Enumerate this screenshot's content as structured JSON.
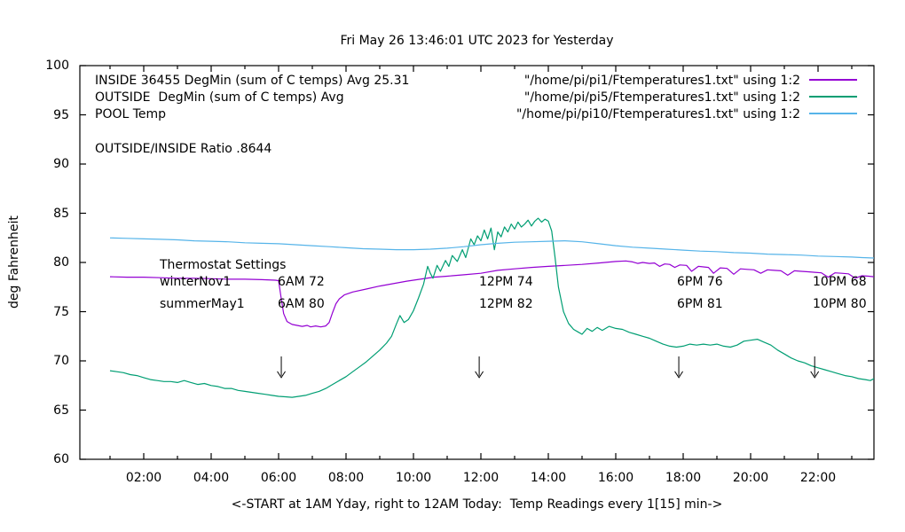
{
  "title": "Fri May 26 13:46:01 UTC 2023 for Yesterday",
  "y_axis": {
    "label": "deg Fahrenheit"
  },
  "x_axis": {
    "label": "<-START at 1AM Yday, right to 12AM Today:  Temp Readings every 1[15] min->"
  },
  "legend_left": {
    "lines": [
      "INSIDE 36455 DegMin (sum of C temps) Avg 25.31",
      "OUTSIDE  DegMin (sum of C temps) Avg",
      "POOL Temp"
    ],
    "ratio_line": "OUTSIDE/INSIDE Ratio .8644"
  },
  "legend_right": {
    "entries": [
      {
        "label": "\"/home/pi/pi1/Ftemperatures1.txt\" using 1:2",
        "color": "#9400d3"
      },
      {
        "label": "\"/home/pi/pi5/Ftemperatures1.txt\" using 1:2",
        "color": "#009e73"
      },
      {
        "label": "\"/home/pi/pi10/Ftemperatures1.txt\" using 1:2",
        "color": "#56b4e9"
      }
    ]
  },
  "thermostat": {
    "heading": "Thermostat Settings",
    "rows": [
      {
        "label": "winterNov1",
        "settings": [
          "6AM 72",
          "12PM 74",
          "6PM 76",
          "10PM 68"
        ]
      },
      {
        "label": "summerMay1",
        "settings": [
          "6AM 80",
          "12PM 82",
          "6PM 81",
          "10PM 80"
        ]
      }
    ]
  },
  "chart_data": {
    "type": "line",
    "title": "Fri May 26 13:46:01 UTC 2023 for Yesterday",
    "xlabel": "<-START at 1AM Yday, right to 12AM Today:  Temp Readings every 1[15] min->",
    "ylabel": "deg Fahrenheit",
    "x_unit": "hour_of_day",
    "xlim": [
      0.1,
      23.66
    ],
    "ylim": [
      60,
      100
    ],
    "grid": false,
    "y_ticks": [
      60,
      65,
      70,
      75,
      80,
      85,
      90,
      95,
      100
    ],
    "x_ticks": [
      {
        "t": 2,
        "label": "02:00"
      },
      {
        "t": 4,
        "label": "04:00"
      },
      {
        "t": 6,
        "label": "06:00"
      },
      {
        "t": 8,
        "label": "08:00"
      },
      {
        "t": 10,
        "label": "10:00"
      },
      {
        "t": 12,
        "label": "12:00"
      },
      {
        "t": 14,
        "label": "14:00"
      },
      {
        "t": 16,
        "label": "16:00"
      },
      {
        "t": 18,
        "label": "18:00"
      },
      {
        "t": 20,
        "label": "20:00"
      },
      {
        "t": 22,
        "label": "22:00"
      }
    ],
    "minor_x_ticks_every_hour": true,
    "series": [
      {
        "name": "INSIDE",
        "color": "#9400d3",
        "points": [
          [
            1.0,
            78.55
          ],
          [
            1.5,
            78.5
          ],
          [
            2.0,
            78.5
          ],
          [
            2.5,
            78.45
          ],
          [
            3.0,
            78.4
          ],
          [
            3.5,
            78.4
          ],
          [
            4.0,
            78.35
          ],
          [
            4.5,
            78.3
          ],
          [
            5.0,
            78.3
          ],
          [
            5.5,
            78.25
          ],
          [
            5.9,
            78.2
          ],
          [
            6.0,
            78.15
          ],
          [
            6.07,
            76.5
          ],
          [
            6.15,
            74.8
          ],
          [
            6.25,
            74.0
          ],
          [
            6.4,
            73.7
          ],
          [
            6.55,
            73.6
          ],
          [
            6.7,
            73.5
          ],
          [
            6.85,
            73.6
          ],
          [
            6.95,
            73.45
          ],
          [
            7.1,
            73.55
          ],
          [
            7.25,
            73.45
          ],
          [
            7.4,
            73.55
          ],
          [
            7.5,
            73.9
          ],
          [
            7.6,
            74.9
          ],
          [
            7.7,
            75.8
          ],
          [
            7.8,
            76.3
          ],
          [
            7.95,
            76.7
          ],
          [
            8.2,
            77.0
          ],
          [
            8.6,
            77.3
          ],
          [
            9.0,
            77.6
          ],
          [
            9.4,
            77.85
          ],
          [
            9.8,
            78.1
          ],
          [
            10.2,
            78.3
          ],
          [
            10.6,
            78.5
          ],
          [
            11.0,
            78.6
          ],
          [
            11.5,
            78.75
          ],
          [
            12.0,
            78.9
          ],
          [
            12.5,
            79.2
          ],
          [
            13.0,
            79.35
          ],
          [
            13.5,
            79.5
          ],
          [
            14.0,
            79.6
          ],
          [
            14.5,
            79.7
          ],
          [
            15.0,
            79.8
          ],
          [
            15.5,
            79.95
          ],
          [
            16.0,
            80.1
          ],
          [
            16.3,
            80.15
          ],
          [
            16.5,
            80.05
          ],
          [
            16.65,
            79.9
          ],
          [
            16.8,
            80.0
          ],
          [
            17.0,
            79.9
          ],
          [
            17.15,
            79.95
          ],
          [
            17.3,
            79.6
          ],
          [
            17.45,
            79.85
          ],
          [
            17.6,
            79.8
          ],
          [
            17.75,
            79.5
          ],
          [
            17.9,
            79.75
          ],
          [
            18.1,
            79.7
          ],
          [
            18.25,
            79.1
          ],
          [
            18.45,
            79.6
          ],
          [
            18.6,
            79.55
          ],
          [
            18.75,
            79.5
          ],
          [
            18.9,
            78.9
          ],
          [
            19.1,
            79.45
          ],
          [
            19.3,
            79.4
          ],
          [
            19.5,
            78.8
          ],
          [
            19.7,
            79.35
          ],
          [
            19.9,
            79.3
          ],
          [
            20.1,
            79.25
          ],
          [
            20.3,
            78.9
          ],
          [
            20.5,
            79.25
          ],
          [
            20.7,
            79.2
          ],
          [
            20.9,
            79.15
          ],
          [
            21.1,
            78.7
          ],
          [
            21.3,
            79.15
          ],
          [
            21.5,
            79.1
          ],
          [
            21.7,
            79.05
          ],
          [
            21.9,
            79.0
          ],
          [
            22.1,
            78.95
          ],
          [
            22.3,
            78.5
          ],
          [
            22.5,
            78.95
          ],
          [
            22.7,
            78.9
          ],
          [
            22.9,
            78.85
          ],
          [
            23.1,
            78.4
          ],
          [
            23.3,
            78.65
          ],
          [
            23.5,
            78.6
          ],
          [
            23.66,
            78.55
          ]
        ]
      },
      {
        "name": "OUTSIDE",
        "color": "#009e73",
        "points": [
          [
            1.0,
            69.0
          ],
          [
            1.2,
            68.9
          ],
          [
            1.4,
            68.8
          ],
          [
            1.6,
            68.6
          ],
          [
            1.8,
            68.5
          ],
          [
            2.0,
            68.3
          ],
          [
            2.2,
            68.1
          ],
          [
            2.4,
            68.0
          ],
          [
            2.6,
            67.9
          ],
          [
            2.8,
            67.9
          ],
          [
            3.0,
            67.8
          ],
          [
            3.2,
            68.0
          ],
          [
            3.4,
            67.8
          ],
          [
            3.6,
            67.6
          ],
          [
            3.8,
            67.7
          ],
          [
            4.0,
            67.5
          ],
          [
            4.2,
            67.4
          ],
          [
            4.4,
            67.2
          ],
          [
            4.6,
            67.2
          ],
          [
            4.8,
            67.0
          ],
          [
            5.0,
            66.9
          ],
          [
            5.2,
            66.8
          ],
          [
            5.4,
            66.7
          ],
          [
            5.6,
            66.6
          ],
          [
            5.8,
            66.5
          ],
          [
            6.0,
            66.4
          ],
          [
            6.2,
            66.35
          ],
          [
            6.4,
            66.3
          ],
          [
            6.6,
            66.4
          ],
          [
            6.8,
            66.5
          ],
          [
            7.0,
            66.7
          ],
          [
            7.2,
            66.9
          ],
          [
            7.4,
            67.2
          ],
          [
            7.6,
            67.6
          ],
          [
            7.8,
            68.0
          ],
          [
            8.0,
            68.4
          ],
          [
            8.2,
            68.9
          ],
          [
            8.4,
            69.4
          ],
          [
            8.6,
            69.9
          ],
          [
            8.8,
            70.5
          ],
          [
            9.0,
            71.1
          ],
          [
            9.2,
            71.8
          ],
          [
            9.35,
            72.5
          ],
          [
            9.5,
            73.8
          ],
          [
            9.6,
            74.6
          ],
          [
            9.72,
            73.9
          ],
          [
            9.85,
            74.2
          ],
          [
            10.0,
            75.1
          ],
          [
            10.15,
            76.4
          ],
          [
            10.3,
            77.8
          ],
          [
            10.42,
            79.6
          ],
          [
            10.5,
            78.9
          ],
          [
            10.58,
            78.4
          ],
          [
            10.7,
            79.7
          ],
          [
            10.8,
            79.1
          ],
          [
            10.95,
            80.2
          ],
          [
            11.05,
            79.6
          ],
          [
            11.15,
            80.7
          ],
          [
            11.3,
            80.1
          ],
          [
            11.45,
            81.3
          ],
          [
            11.55,
            80.5
          ],
          [
            11.7,
            82.4
          ],
          [
            11.8,
            81.8
          ],
          [
            11.9,
            82.7
          ],
          [
            12.0,
            82.2
          ],
          [
            12.1,
            83.3
          ],
          [
            12.2,
            82.4
          ],
          [
            12.3,
            83.5
          ],
          [
            12.4,
            81.3
          ],
          [
            12.5,
            83.1
          ],
          [
            12.6,
            82.6
          ],
          [
            12.7,
            83.6
          ],
          [
            12.8,
            83.1
          ],
          [
            12.9,
            83.9
          ],
          [
            13.0,
            83.4
          ],
          [
            13.1,
            84.1
          ],
          [
            13.2,
            83.6
          ],
          [
            13.3,
            83.9
          ],
          [
            13.4,
            84.3
          ],
          [
            13.5,
            83.7
          ],
          [
            13.6,
            84.2
          ],
          [
            13.7,
            84.5
          ],
          [
            13.8,
            84.1
          ],
          [
            13.9,
            84.4
          ],
          [
            14.0,
            84.2
          ],
          [
            14.1,
            83.2
          ],
          [
            14.2,
            80.5
          ],
          [
            14.3,
            77.5
          ],
          [
            14.45,
            75.0
          ],
          [
            14.6,
            73.8
          ],
          [
            14.75,
            73.2
          ],
          [
            14.9,
            72.9
          ],
          [
            15.0,
            72.7
          ],
          [
            15.15,
            73.3
          ],
          [
            15.3,
            73.0
          ],
          [
            15.45,
            73.4
          ],
          [
            15.6,
            73.1
          ],
          [
            15.8,
            73.5
          ],
          [
            16.0,
            73.3
          ],
          [
            16.2,
            73.2
          ],
          [
            16.4,
            72.9
          ],
          [
            16.6,
            72.7
          ],
          [
            16.8,
            72.5
          ],
          [
            17.0,
            72.3
          ],
          [
            17.2,
            72.0
          ],
          [
            17.4,
            71.7
          ],
          [
            17.6,
            71.5
          ],
          [
            17.8,
            71.4
          ],
          [
            18.0,
            71.5
          ],
          [
            18.2,
            71.7
          ],
          [
            18.4,
            71.6
          ],
          [
            18.6,
            71.7
          ],
          [
            18.8,
            71.6
          ],
          [
            19.0,
            71.7
          ],
          [
            19.2,
            71.5
          ],
          [
            19.4,
            71.4
          ],
          [
            19.6,
            71.6
          ],
          [
            19.8,
            72.0
          ],
          [
            20.0,
            72.1
          ],
          [
            20.2,
            72.2
          ],
          [
            20.4,
            71.9
          ],
          [
            20.6,
            71.6
          ],
          [
            20.8,
            71.1
          ],
          [
            21.0,
            70.7
          ],
          [
            21.2,
            70.3
          ],
          [
            21.4,
            70.0
          ],
          [
            21.6,
            69.8
          ],
          [
            21.8,
            69.5
          ],
          [
            22.0,
            69.3
          ],
          [
            22.2,
            69.1
          ],
          [
            22.4,
            68.9
          ],
          [
            22.6,
            68.7
          ],
          [
            22.8,
            68.5
          ],
          [
            23.0,
            68.4
          ],
          [
            23.2,
            68.2
          ],
          [
            23.4,
            68.1
          ],
          [
            23.55,
            68.0
          ],
          [
            23.66,
            68.2
          ]
        ]
      },
      {
        "name": "POOL",
        "color": "#56b4e9",
        "points": [
          [
            1.0,
            82.5
          ],
          [
            1.5,
            82.45
          ],
          [
            2.0,
            82.4
          ],
          [
            2.5,
            82.35
          ],
          [
            3.0,
            82.3
          ],
          [
            3.5,
            82.2
          ],
          [
            4.0,
            82.15
          ],
          [
            4.5,
            82.1
          ],
          [
            5.0,
            82.0
          ],
          [
            5.5,
            81.95
          ],
          [
            6.0,
            81.9
          ],
          [
            6.5,
            81.8
          ],
          [
            7.0,
            81.7
          ],
          [
            7.5,
            81.6
          ],
          [
            8.0,
            81.5
          ],
          [
            8.5,
            81.4
          ],
          [
            9.0,
            81.35
          ],
          [
            9.5,
            81.3
          ],
          [
            10.0,
            81.3
          ],
          [
            10.5,
            81.35
          ],
          [
            11.0,
            81.45
          ],
          [
            11.5,
            81.6
          ],
          [
            12.0,
            81.8
          ],
          [
            12.5,
            81.95
          ],
          [
            13.0,
            82.05
          ],
          [
            13.5,
            82.1
          ],
          [
            14.0,
            82.15
          ],
          [
            14.5,
            82.2
          ],
          [
            15.0,
            82.1
          ],
          [
            15.5,
            81.9
          ],
          [
            16.0,
            81.7
          ],
          [
            16.5,
            81.55
          ],
          [
            17.0,
            81.45
          ],
          [
            17.5,
            81.35
          ],
          [
            18.0,
            81.25
          ],
          [
            18.5,
            81.15
          ],
          [
            19.0,
            81.1
          ],
          [
            19.5,
            81.0
          ],
          [
            20.0,
            80.95
          ],
          [
            20.5,
            80.85
          ],
          [
            21.0,
            80.8
          ],
          [
            21.5,
            80.75
          ],
          [
            22.0,
            80.65
          ],
          [
            22.5,
            80.6
          ],
          [
            23.0,
            80.55
          ],
          [
            23.3,
            80.5
          ],
          [
            23.66,
            80.45
          ]
        ]
      }
    ],
    "annotations": {
      "arrows": {
        "times": [
          6.08,
          11.95,
          17.87,
          21.9
        ],
        "from_v": 70.45,
        "to_v": 68.3
      }
    }
  }
}
